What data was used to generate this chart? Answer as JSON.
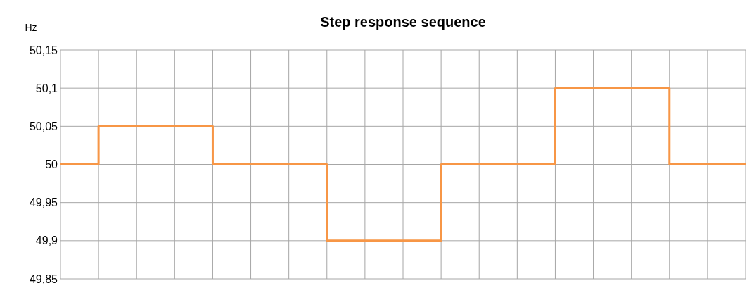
{
  "chart_data": {
    "type": "step",
    "title": "Step response sequence",
    "ylabel": "Hz",
    "categories": [
      null,
      null,
      null,
      null,
      null,
      null,
      null,
      null,
      null,
      null,
      null,
      null,
      null,
      null,
      null,
      null,
      null,
      null,
      null
    ],
    "series": [
      {
        "color": "#f79646",
        "values": [
          50,
          50.05,
          50.05,
          50.05,
          50,
          50,
          50,
          49.9,
          49.9,
          49.9,
          50,
          50,
          50,
          50.1,
          50.1,
          50.1,
          50,
          50,
          50
        ]
      }
    ],
    "ylim": [
      49.85,
      50.15
    ],
    "yticks": [
      {
        "value": 49.85,
        "label": "49,85"
      },
      {
        "value": 49.9,
        "label": "49,9"
      },
      {
        "value": 49.95,
        "label": "49,95"
      },
      {
        "value": 50,
        "label": "50"
      },
      {
        "value": 50.05,
        "label": "50,05"
      },
      {
        "value": 50.1,
        "label": "50,1"
      },
      {
        "value": 50.15,
        "label": "50,15"
      }
    ],
    "grid": true
  }
}
